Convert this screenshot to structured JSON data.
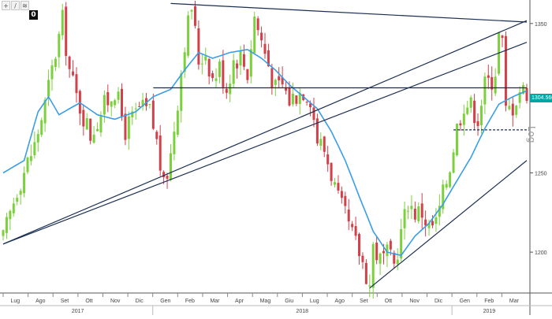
{
  "toolbar": {
    "buttons": [
      {
        "label": "+",
        "icon": "crosshair-icon"
      },
      {
        "label": "/",
        "icon": "pencil-icon"
      },
      {
        "label": "≋",
        "icon": "settings-icon"
      }
    ],
    "counter": "0"
  },
  "price_label": "1304.5601",
  "scale_label": "Log",
  "colors": {
    "up": "#7bd13b",
    "down": "#d2404a",
    "ma": "#3a9ee6",
    "trendline": "#1a2e52",
    "grid": "#cccccc",
    "price_box": "#00a5a8"
  },
  "chart_data": {
    "type": "candlestick",
    "scale": "log",
    "ylim": [
      1175,
      1362
    ],
    "y_ticks": [
      "1350",
      "1300",
      "1250",
      "1200"
    ],
    "x_ticks": [
      "Lug",
      "Ago",
      "Set",
      "Ott",
      "Nov",
      "Dic",
      "Gen",
      "Feb",
      "Mar",
      "Apr",
      "Mag",
      "Giu",
      "Lug",
      "Ago",
      "Set",
      "Ott",
      "Nov",
      "Dic",
      "Gen",
      "Feb",
      "Mar"
    ],
    "year_labels": [
      "2017",
      "2018",
      "2019"
    ],
    "anchors": [
      [
        0,
        1208
      ],
      [
        4,
        1240
      ],
      [
        9,
        1268
      ],
      [
        12,
        1295
      ],
      [
        14,
        1318
      ],
      [
        17,
        1352
      ],
      [
        19,
        1318
      ],
      [
        21,
        1300
      ],
      [
        25,
        1275
      ],
      [
        29,
        1294
      ],
      [
        32,
        1305
      ],
      [
        35,
        1278
      ],
      [
        39,
        1292
      ],
      [
        42,
        1290
      ],
      [
        44,
        1270
      ],
      [
        46,
        1240
      ],
      [
        48,
        1262
      ],
      [
        50,
        1298
      ],
      [
        52,
        1338
      ],
      [
        54,
        1362
      ],
      [
        56,
        1325
      ],
      [
        58,
        1330
      ],
      [
        60,
        1312
      ],
      [
        62,
        1320
      ],
      [
        64,
        1306
      ],
      [
        66,
        1325
      ],
      [
        68,
        1328
      ],
      [
        70,
        1316
      ],
      [
        72,
        1355
      ],
      [
        74,
        1338
      ],
      [
        76,
        1322
      ],
      [
        78,
        1305
      ],
      [
        80,
        1308
      ],
      [
        82,
        1298
      ],
      [
        84,
        1302
      ],
      [
        86,
        1305
      ],
      [
        88,
        1300
      ],
      [
        90,
        1272
      ],
      [
        92,
        1265
      ],
      [
        94,
        1250
      ],
      [
        96,
        1232
      ],
      [
        98,
        1222
      ],
      [
        100,
        1210
      ],
      [
        102,
        1200
      ],
      [
        104,
        1187
      ],
      [
        105,
        1180
      ],
      [
        106,
        1204
      ],
      [
        108,
        1195
      ],
      [
        110,
        1198
      ],
      [
        112,
        1192
      ],
      [
        114,
        1212
      ],
      [
        116,
        1232
      ],
      [
        118,
        1225
      ],
      [
        120,
        1225
      ],
      [
        122,
        1215
      ],
      [
        124,
        1218
      ],
      [
        126,
        1236
      ],
      [
        128,
        1255
      ],
      [
        130,
        1280
      ],
      [
        132,
        1296
      ],
      [
        134,
        1294
      ],
      [
        136,
        1286
      ],
      [
        138,
        1308
      ],
      [
        140,
        1312
      ],
      [
        141,
        1318
      ],
      [
        142,
        1342
      ],
      [
        143,
        1336
      ],
      [
        144,
        1290
      ],
      [
        146,
        1294
      ],
      [
        148,
        1305
      ],
      [
        150,
        1304
      ]
    ],
    "ma_anchors": [
      [
        0,
        1250
      ],
      [
        6,
        1258
      ],
      [
        10,
        1290
      ],
      [
        13,
        1300
      ],
      [
        16,
        1288
      ],
      [
        22,
        1296
      ],
      [
        27,
        1288
      ],
      [
        32,
        1285
      ],
      [
        38,
        1290
      ],
      [
        43,
        1300
      ],
      [
        48,
        1305
      ],
      [
        52,
        1318
      ],
      [
        56,
        1330
      ],
      [
        60,
        1326
      ],
      [
        65,
        1330
      ],
      [
        70,
        1332
      ],
      [
        74,
        1326
      ],
      [
        78,
        1318
      ],
      [
        82,
        1308
      ],
      [
        86,
        1300
      ],
      [
        90,
        1292
      ],
      [
        94,
        1277
      ],
      [
        98,
        1258
      ],
      [
        102,
        1235
      ],
      [
        106,
        1213
      ],
      [
        110,
        1200
      ],
      [
        114,
        1198
      ],
      [
        118,
        1210
      ],
      [
        122,
        1218
      ],
      [
        126,
        1230
      ],
      [
        130,
        1245
      ],
      [
        134,
        1260
      ],
      [
        138,
        1279
      ],
      [
        142,
        1295
      ],
      [
        146,
        1300
      ],
      [
        150,
        1304
      ]
    ],
    "trendlines": [
      {
        "points": [
          [
            0,
            1205
          ],
          [
            150,
            1352
          ]
        ]
      },
      {
        "points": [
          [
            48,
            1364
          ],
          [
            150,
            1351
          ]
        ]
      },
      {
        "points": [
          [
            0,
            1205
          ],
          [
            150,
            1337
          ]
        ]
      },
      {
        "points": [
          [
            105,
            1178
          ],
          [
            150,
            1258
          ]
        ]
      }
    ],
    "horizontal_lines": [
      {
        "y": 1306,
        "x_range": [
          43,
          150
        ],
        "style": "solid"
      },
      {
        "y": 1278,
        "x_range": [
          129,
          150
        ],
        "style": "dashed"
      }
    ]
  }
}
